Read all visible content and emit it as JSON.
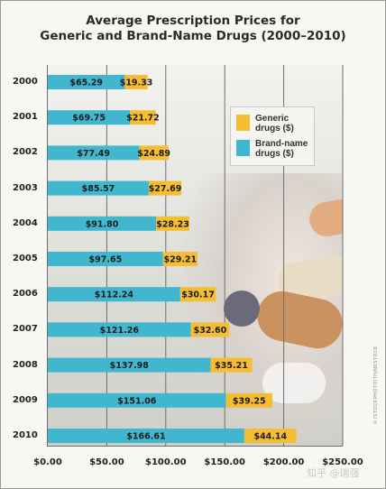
{
  "colors": {
    "brand": "#40b6cf",
    "generic": "#f4bd32",
    "grid": "#6d6d6d"
  },
  "chart_data": {
    "type": "bar",
    "orientation": "horizontal",
    "stacked": true,
    "title": "Average Prescription Prices for Generic and Brand-Name Drugs (2000–2010)",
    "title_lines": [
      "Average Prescription Prices for",
      "Generic and Brand-Name Drugs (2000–2010)"
    ],
    "categories": [
      "2000",
      "2001",
      "2002",
      "2003",
      "2004",
      "2005",
      "2006",
      "2007",
      "2008",
      "2009",
      "2010"
    ],
    "series": [
      {
        "name": "Brand-name drugs ($)",
        "values": [
          65.29,
          69.75,
          77.49,
          85.57,
          91.8,
          97.65,
          112.24,
          121.26,
          137.98,
          151.06,
          166.61
        ],
        "labels": [
          "$65.29",
          "$69.75",
          "$77.49",
          "$85.57",
          "$91.80",
          "$97.65",
          "$112.24",
          "$121.26",
          "$137.98",
          "$151.06",
          "$166.61"
        ]
      },
      {
        "name": "Generic drugs ($)",
        "values": [
          19.33,
          21.72,
          24.89,
          27.69,
          28.23,
          29.21,
          30.17,
          32.6,
          35.21,
          39.25,
          44.14
        ],
        "labels": [
          "$19.33",
          "$21.72",
          "$24.89",
          "$27.69",
          "$28.23",
          "$29.21",
          "$30.17",
          "$32.60",
          "$35.21",
          "$39.25",
          "$44.14"
        ]
      }
    ],
    "legend": [
      {
        "line1": "Generic",
        "line2": "drugs ($)"
      },
      {
        "line1": "Brand-name",
        "line2": "drugs ($)"
      }
    ],
    "legend_position": "top-right",
    "xlim": [
      0,
      250
    ],
    "xticks": [
      0,
      50,
      100,
      150,
      200,
      250
    ],
    "xtick_labels": [
      "$0.00",
      "$50.00",
      "$100.00",
      "$150.00",
      "$200.00",
      "$250.00"
    ],
    "grid": true
  },
  "watermark": "知乎 @瑞强",
  "credit": "© ISTOCKPHOTO/THINKSTOCK"
}
